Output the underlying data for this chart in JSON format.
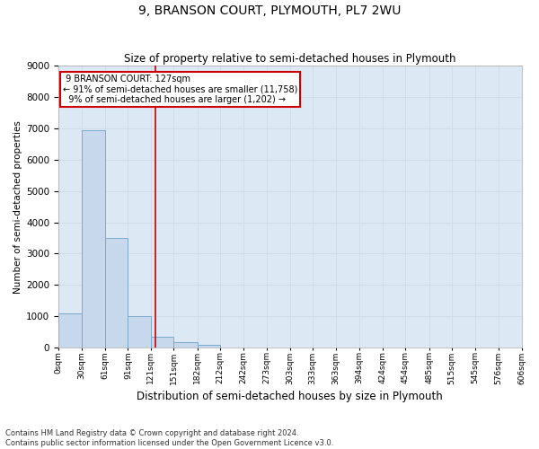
{
  "title": "9, BRANSON COURT, PLYMOUTH, PL7 2WU",
  "subtitle": "Size of property relative to semi-detached houses in Plymouth",
  "xlabel": "Distribution of semi-detached houses by size in Plymouth",
  "ylabel": "Number of semi-detached properties",
  "footer_line1": "Contains HM Land Registry data © Crown copyright and database right 2024.",
  "footer_line2": "Contains public sector information licensed under the Open Government Licence v3.0.",
  "property_size": 127,
  "property_label": "9 BRANSON COURT: 127sqm",
  "pct_smaller": 91,
  "count_smaller": 11758,
  "pct_larger": 9,
  "count_larger": 1202,
  "bin_edges": [
    0,
    30,
    61,
    91,
    121,
    151,
    182,
    212,
    242,
    273,
    303,
    333,
    363,
    394,
    424,
    454,
    485,
    515,
    545,
    576,
    606
  ],
  "bar_heights": [
    1100,
    6950,
    3500,
    1000,
    350,
    160,
    100,
    10,
    0,
    0,
    0,
    0,
    0,
    0,
    0,
    0,
    0,
    0,
    0,
    0
  ],
  "bar_color": "#c8d8ec",
  "bar_edge_color": "#7aaacc",
  "grid_color": "#d0dde8",
  "annotation_box_color": "#cc0000",
  "vline_color": "#cc0000",
  "background_color": "#dce8f4",
  "ylim": [
    0,
    9000
  ],
  "yticks": [
    0,
    1000,
    2000,
    3000,
    4000,
    5000,
    6000,
    7000,
    8000,
    9000
  ],
  "figsize": [
    6.0,
    5.0
  ],
  "dpi": 100
}
